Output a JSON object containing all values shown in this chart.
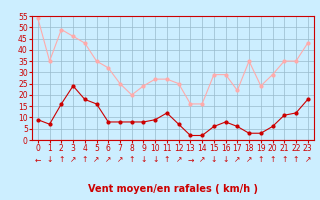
{
  "x": [
    0,
    1,
    2,
    3,
    4,
    5,
    6,
    7,
    8,
    9,
    10,
    11,
    12,
    13,
    14,
    15,
    16,
    17,
    18,
    19,
    20,
    21,
    22,
    23
  ],
  "wind_mean": [
    9,
    7,
    16,
    24,
    18,
    16,
    8,
    8,
    8,
    8,
    9,
    12,
    7,
    2,
    2,
    6,
    8,
    6,
    3,
    3,
    6,
    11,
    12,
    18
  ],
  "wind_gust": [
    54,
    35,
    49,
    46,
    43,
    35,
    32,
    25,
    20,
    24,
    27,
    27,
    25,
    16,
    16,
    29,
    29,
    22,
    35,
    24,
    29,
    35,
    35,
    43
  ],
  "xlabel": "Vent moyen/en rafales ( km/h )",
  "ylim": [
    0,
    55
  ],
  "yticks": [
    0,
    5,
    10,
    15,
    20,
    25,
    30,
    35,
    40,
    45,
    50,
    55
  ],
  "xticks": [
    0,
    1,
    2,
    3,
    4,
    5,
    6,
    7,
    8,
    9,
    10,
    11,
    12,
    13,
    14,
    15,
    16,
    17,
    18,
    19,
    20,
    21,
    22,
    23
  ],
  "arrows": [
    "←",
    "↓",
    "↑",
    "↗",
    "↑",
    "↗",
    "↗",
    "↗",
    "↑",
    "↓",
    "↓",
    "↑",
    "↗",
    "→",
    "↗",
    "↓",
    "↓",
    "↗",
    "↗",
    "↑",
    "↑",
    "↑",
    "↑",
    "↗"
  ],
  "mean_color": "#cc0000",
  "gust_color": "#ffaaaa",
  "bg_color": "#cceeff",
  "grid_color": "#99bbcc",
  "axis_color": "#cc0000",
  "text_color": "#cc0000",
  "xlabel_fontsize": 7,
  "tick_fontsize": 5.5,
  "arrow_fontsize": 5.5
}
